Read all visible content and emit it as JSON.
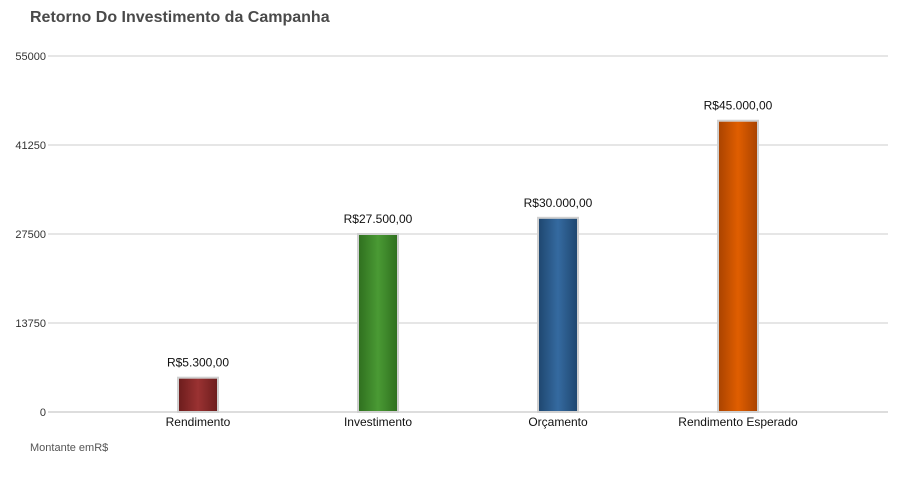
{
  "chart_data": {
    "type": "bar",
    "title": "Retorno Do Investimento da Campanha",
    "categories": [
      "Rendimento",
      "Investimento",
      "Orçamento",
      "Rendimento Esperado"
    ],
    "values": [
      5300,
      27500,
      30000,
      45000
    ],
    "data_labels": [
      "R$5.300,00",
      "R$27.500,00",
      "R$30.000,00",
      "R$45.000,00"
    ],
    "colors": [
      "#8b2a2a",
      "#3d8a2a",
      "#2a5a8a",
      "#cc5200"
    ],
    "ylim": [
      0,
      55000
    ],
    "yticks": [
      "0",
      "13750",
      "27500",
      "41250",
      "55000"
    ],
    "ytick_values": [
      0,
      13750,
      27500,
      41250,
      55000
    ],
    "grid": true,
    "legend": "none",
    "footnote": "Montante emR$"
  }
}
